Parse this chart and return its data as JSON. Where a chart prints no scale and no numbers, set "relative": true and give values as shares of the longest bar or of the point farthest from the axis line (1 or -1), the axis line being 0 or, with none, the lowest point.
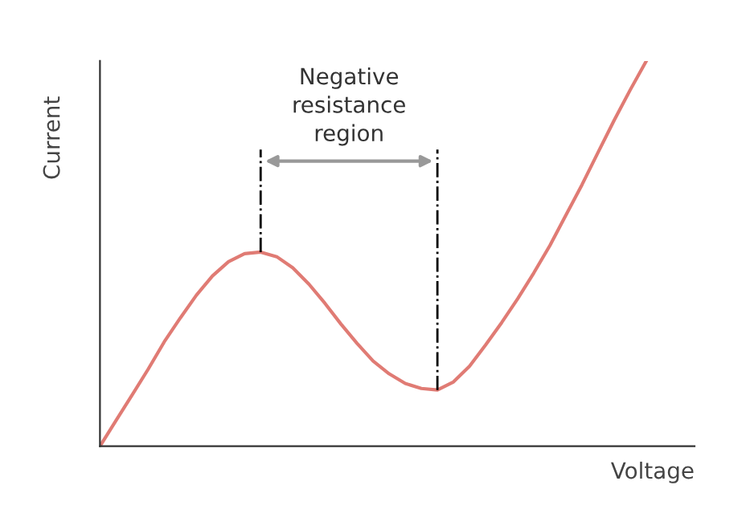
{
  "chart_data": {
    "type": "line",
    "relative": true,
    "xlabel": "Voltage",
    "ylabel": "Current",
    "annotations": [
      "Negative resistance region"
    ],
    "categories": [
      null,
      null,
      null,
      null,
      null,
      null,
      null,
      null,
      null,
      null,
      null,
      null,
      null,
      null,
      null,
      null,
      null,
      null,
      null,
      null,
      null,
      null,
      null,
      null,
      null,
      null,
      null,
      null,
      null,
      null,
      null,
      null,
      null,
      null,
      null,
      null,
      null,
      null
    ],
    "series": [
      {
        "color": "#e07b74",
        "values": [
          0,
          0.067,
          0.133,
          0.2,
          0.271,
          0.333,
          0.392,
          0.442,
          0.479,
          0.5,
          0.504,
          0.492,
          0.463,
          0.421,
          0.371,
          0.317,
          0.267,
          0.221,
          0.188,
          0.163,
          0.15,
          0.146,
          0.167,
          0.208,
          0.263,
          0.321,
          0.383,
          0.45,
          0.521,
          0.6,
          0.679,
          0.763,
          0.846,
          0.925,
          1,
          null,
          null,
          null
        ]
      }
    ]
  }
}
